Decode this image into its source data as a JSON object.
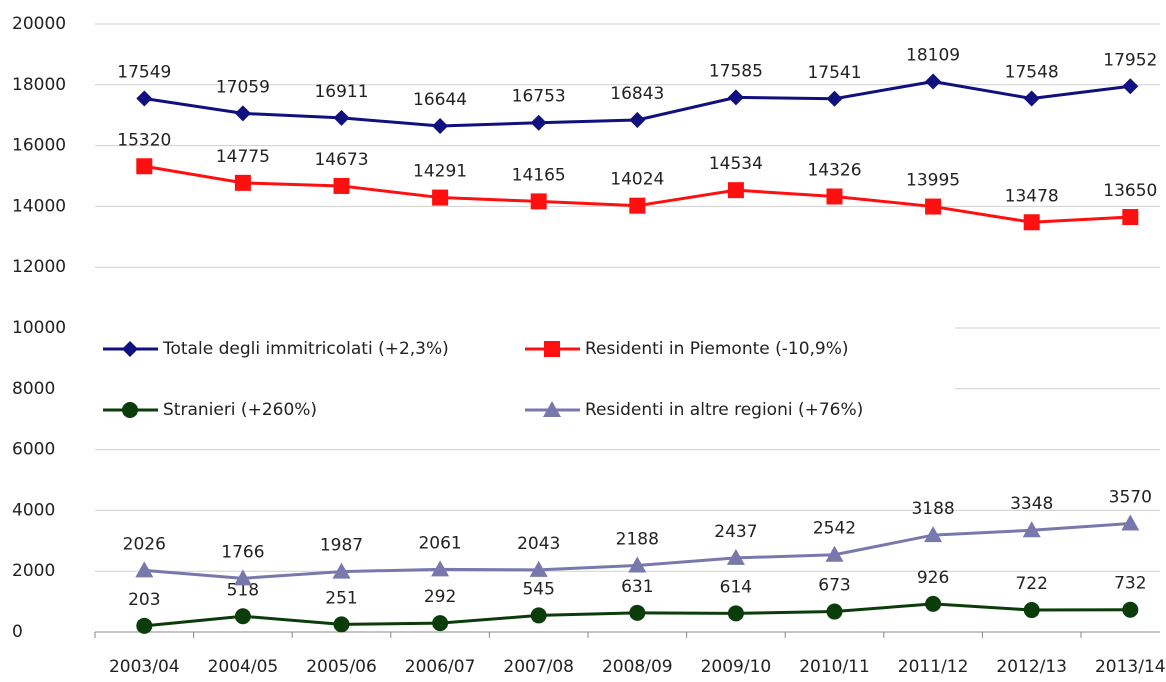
{
  "chart_data": {
    "type": "line",
    "categories": [
      "2003/04",
      "2004/05",
      "2005/06",
      "2006/07",
      "2007/08",
      "2008/09",
      "2009/10",
      "2010/11",
      "2011/12",
      "2012/13",
      "2013/14"
    ],
    "series": [
      {
        "name": "Totale degli immitricolati (+2,3%)",
        "color": "#10107e",
        "marker": "diamond",
        "values": [
          17549,
          17059,
          16911,
          16644,
          16753,
          16843,
          17585,
          17541,
          18109,
          17548,
          17952
        ]
      },
      {
        "name": "Residenti in Piemonte (-10,9%)",
        "color": "#ff1010",
        "marker": "square",
        "values": [
          15320,
          14775,
          14673,
          14291,
          14165,
          14024,
          14534,
          14326,
          13995,
          13478,
          13650
        ]
      },
      {
        "name": "Stranieri (+260%)",
        "color": "#0a3d0a",
        "marker": "circle",
        "values": [
          203,
          518,
          251,
          292,
          545,
          631,
          614,
          673,
          926,
          722,
          732
        ]
      },
      {
        "name": "Residenti in altre regioni (+76%)",
        "color": "#7878ad",
        "marker": "triangle",
        "values": [
          2026,
          1766,
          1987,
          2061,
          2043,
          2188,
          2437,
          2542,
          3188,
          3348,
          3570
        ]
      }
    ],
    "ylim": [
      0,
      20000
    ],
    "yticks": [
      0,
      2000,
      4000,
      6000,
      8000,
      10000,
      12000,
      14000,
      16000,
      18000,
      20000
    ],
    "grid": true
  }
}
